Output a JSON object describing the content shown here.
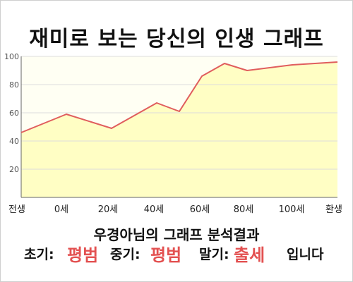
{
  "chart_data": {
    "type": "area",
    "title": "재미로 보는 당신의 인생 그래프",
    "categories": [
      "전생",
      "0세",
      "20세",
      "40세",
      "60세",
      "80세",
      "100세",
      "환생"
    ],
    "x": [
      -20,
      0,
      20,
      30,
      40,
      50,
      60,
      70,
      80,
      100,
      120
    ],
    "values": [
      46,
      59,
      49,
      58,
      67,
      61,
      86,
      95,
      90,
      94,
      96
    ],
    "ylim": [
      0,
      100
    ],
    "yticks": [
      20,
      40,
      60,
      80,
      100
    ],
    "grid": true,
    "colors": {
      "line": "#e05d5d",
      "fill": "#fffec4",
      "grid": "#dcdcdc"
    }
  },
  "summary": {
    "subtitle": "우경아님의 그래프 분석결과",
    "early_label": "초기:",
    "early_value": "평범",
    "mid_label": "중기:",
    "mid_value": "평범",
    "late_label": "말기:",
    "late_value": "출세",
    "ending": "입니다"
  }
}
